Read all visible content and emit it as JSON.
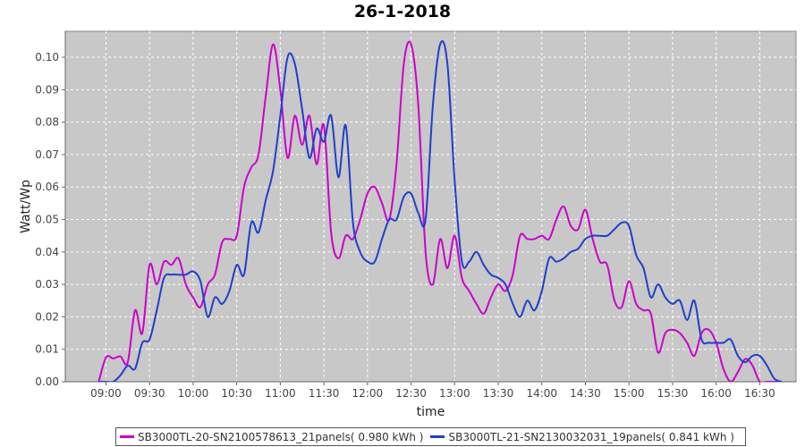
{
  "chart_data": {
    "type": "line",
    "title": "26-1-2018",
    "xlabel": "time",
    "ylabel": "Watt/Wp",
    "x_ticks": [
      "09:00",
      "09:30",
      "10:00",
      "10:30",
      "11:00",
      "11:30",
      "12:00",
      "12:30",
      "13:00",
      "13:30",
      "14:00",
      "14:30",
      "15:00",
      "15:30",
      "16:00",
      "16:30"
    ],
    "y_ticks": [
      "0.00",
      "0.01",
      "0.02",
      "0.03",
      "0.04",
      "0.05",
      "0.06",
      "0.07",
      "0.08",
      "0.09",
      "0.10"
    ],
    "ylim": [
      0,
      0.108
    ],
    "grid": true,
    "legend_position": "bottom",
    "plot_background": "#c8c8c8",
    "x": [
      "08:55",
      "09:00",
      "09:05",
      "09:10",
      "09:15",
      "09:20",
      "09:25",
      "09:30",
      "09:35",
      "09:40",
      "09:45",
      "09:50",
      "09:55",
      "10:00",
      "10:05",
      "10:10",
      "10:15",
      "10:20",
      "10:25",
      "10:30",
      "10:35",
      "10:40",
      "10:45",
      "10:50",
      "10:55",
      "11:00",
      "11:05",
      "11:10",
      "11:15",
      "11:20",
      "11:25",
      "11:30",
      "11:35",
      "11:40",
      "11:45",
      "11:50",
      "11:55",
      "12:00",
      "12:05",
      "12:10",
      "12:15",
      "12:20",
      "12:25",
      "12:30",
      "12:35",
      "12:40",
      "12:45",
      "12:50",
      "12:55",
      "13:00",
      "13:05",
      "13:10",
      "13:15",
      "13:20",
      "13:25",
      "13:30",
      "13:35",
      "13:40",
      "13:45",
      "13:50",
      "13:55",
      "14:00",
      "14:05",
      "14:10",
      "14:15",
      "14:20",
      "14:25",
      "14:30",
      "14:35",
      "14:40",
      "14:45",
      "14:50",
      "14:55",
      "15:00",
      "15:05",
      "15:10",
      "15:15",
      "15:20",
      "15:25",
      "15:30",
      "15:35",
      "15:40",
      "15:45",
      "15:50",
      "15:55",
      "16:00",
      "16:05",
      "16:10",
      "16:15",
      "16:20",
      "16:25",
      "16:30",
      "16:35",
      "16:40",
      "16:45"
    ],
    "series": [
      {
        "name": "SB3000TL-20-SN2100578613_21panels( 0.980 kWh )",
        "color": "#cc00cc",
        "values": [
          0.0,
          0.0075,
          0.0072,
          0.0078,
          0.006,
          0.022,
          0.015,
          0.036,
          0.03,
          0.037,
          0.036,
          0.038,
          0.03,
          0.026,
          0.023,
          0.03,
          0.033,
          0.043,
          0.044,
          0.045,
          0.06,
          0.066,
          0.07,
          0.088,
          0.104,
          0.09,
          0.069,
          0.082,
          0.073,
          0.082,
          0.067,
          0.079,
          0.046,
          0.038,
          0.045,
          0.044,
          0.05,
          0.058,
          0.06,
          0.055,
          0.05,
          0.067,
          0.098,
          0.104,
          0.085,
          0.04,
          0.03,
          0.044,
          0.035,
          0.045,
          0.032,
          0.028,
          0.024,
          0.021,
          0.026,
          0.03,
          0.028,
          0.033,
          0.045,
          0.044,
          0.044,
          0.045,
          0.044,
          0.05,
          0.054,
          0.048,
          0.047,
          0.053,
          0.044,
          0.037,
          0.036,
          0.025,
          0.023,
          0.031,
          0.024,
          0.022,
          0.021,
          0.009,
          0.015,
          0.016,
          0.015,
          0.012,
          0.008,
          0.015,
          0.016,
          0.012,
          0.004,
          0.0,
          0.003,
          0.007,
          0.005,
          0.0,
          0.0,
          0.0,
          0.0
        ]
      },
      {
        "name": "SB3000TL-21-SN2130032031_19panels( 0.841 kWh )",
        "color": "#1f3fcc",
        "values": [
          0.0,
          0.0,
          0.0,
          0.002,
          0.005,
          0.004,
          0.012,
          0.013,
          0.022,
          0.032,
          0.033,
          0.033,
          0.033,
          0.034,
          0.031,
          0.02,
          0.026,
          0.024,
          0.028,
          0.036,
          0.033,
          0.049,
          0.046,
          0.056,
          0.065,
          0.082,
          0.1,
          0.098,
          0.084,
          0.069,
          0.078,
          0.074,
          0.082,
          0.063,
          0.079,
          0.049,
          0.04,
          0.037,
          0.037,
          0.044,
          0.05,
          0.05,
          0.057,
          0.058,
          0.052,
          0.05,
          0.085,
          0.104,
          0.098,
          0.062,
          0.037,
          0.037,
          0.04,
          0.036,
          0.033,
          0.032,
          0.03,
          0.024,
          0.02,
          0.025,
          0.022,
          0.028,
          0.038,
          0.037,
          0.038,
          0.04,
          0.041,
          0.044,
          0.045,
          0.045,
          0.045,
          0.047,
          0.049,
          0.048,
          0.039,
          0.035,
          0.026,
          0.03,
          0.026,
          0.024,
          0.025,
          0.019,
          0.025,
          0.013,
          0.012,
          0.012,
          0.012,
          0.013,
          0.008,
          0.006,
          0.008,
          0.008,
          0.005,
          0.001,
          0.0
        ]
      }
    ]
  }
}
